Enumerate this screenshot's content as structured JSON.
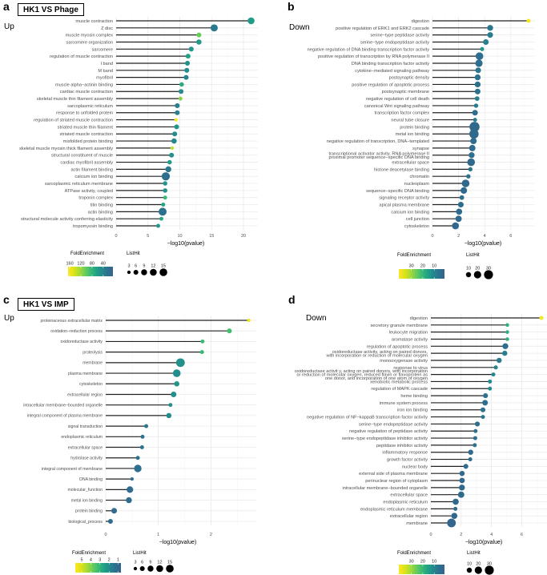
{
  "chart_data": [
    {
      "type": "lollipop",
      "letter": "a",
      "comparison": "HK1 VS Phage",
      "direction": "Up",
      "xlabel": "−log10(pvalue)",
      "xticks": [
        "0",
        "5",
        "10",
        "15",
        "20"
      ],
      "xlim": [
        0,
        22
      ],
      "legend_color_title": "FoldEnrichment",
      "legend_color_ticks": [
        "160",
        "120",
        "80",
        "40"
      ],
      "color_range": [
        5,
        166
      ],
      "legend_size_title": "ListHit",
      "legend_size_ticks": [
        "3",
        "6",
        "9",
        "12",
        "15"
      ],
      "size_max": 15,
      "terms": [
        "muscle contraction",
        "Z disc",
        "muscle myosin complex",
        "sarcomere organization",
        "sarcomere",
        "regulation of muscle contraction",
        "I band",
        "M band",
        "myofibril",
        "muscle alpha−actinin binding",
        "cardiac muscle contraction",
        "skeletal muscle thin filament assembly",
        "sarcoplasmic reticulum",
        "response to unfolded protein",
        "regulation of striated muscle contraction",
        "striated muscle thin filament",
        "striated muscle contraction",
        "misfolded protein binding",
        "skeletal muscle myosin thick filament assembly",
        "structural constituent of muscle",
        "cardiac myofibril assembly",
        "actin filament binding",
        "calcium ion binding",
        "sarcoplasmic reticulum membrane",
        "ATPase activity, coupled",
        "troponin complex",
        "titin binding",
        "actin binding",
        "structural molecule activity conferring elasticity",
        "tropomyosin binding"
      ],
      "x": [
        21.2,
        15.4,
        13.0,
        13.0,
        11.8,
        11.3,
        11.2,
        11.1,
        11.0,
        10.3,
        10.2,
        10.1,
        9.6,
        9.6,
        9.4,
        9.5,
        9.2,
        9.1,
        8.8,
        8.7,
        8.4,
        8.2,
        7.8,
        7.7,
        7.7,
        7.7,
        7.4,
        7.3,
        7.1,
        6.6
      ],
      "listhit": [
        12,
        13,
        6,
        7,
        6,
        6,
        6,
        6,
        6,
        5,
        6,
        4,
        6,
        6,
        3,
        6,
        6,
        7,
        3,
        6,
        5,
        9,
        17,
        5,
        5,
        4,
        4,
        16,
        4,
        4
      ],
      "fold_enrichment": [
        60,
        32,
        105,
        58,
        55,
        62,
        52,
        48,
        40,
        72,
        45,
        115,
        36,
        36,
        165,
        55,
        48,
        42,
        135,
        52,
        62,
        32,
        22,
        55,
        52,
        85,
        68,
        24,
        68,
        58
      ]
    },
    {
      "type": "lollipop",
      "letter": "b",
      "comparison": "",
      "direction": "Down",
      "xlabel": "−log10(pvalue)",
      "xticks": [
        "0",
        "2",
        "4",
        "6"
      ],
      "xlim": [
        0,
        7.8
      ],
      "legend_color_title": "FoldEnrichment",
      "legend_color_ticks": [
        "30",
        "20",
        "10"
      ],
      "color_range": [
        1,
        41
      ],
      "legend_size_title": "ListHit",
      "legend_size_ticks": [
        "10",
        "20",
        "30"
      ],
      "size_max": 30,
      "terms": [
        "digestion",
        "positive regulation of ERK1 and ERK2 cascade",
        "serine−type peptidase activity",
        "serine−type endopeptidase activity",
        "negative regulation of DNA binding transcription factor activity",
        "positive regulation of transcription by RNA polymerase II",
        "DNA binding transcription factor activity",
        "cytokine−mediated signaling pathway",
        "postsynaptic density",
        "positive regulation of apoptotic process",
        "postsynaptic membrane",
        "negative regulation of cell death",
        "canonical Wnt signaling pathway",
        "transcription factor complex",
        "neural tube closure",
        "protein binding",
        "metal ion binding",
        "negative regulation of transcription, DNA−templated",
        "synapse",
        "transcriptional activator activity, RNA polymerase II\nproximal promoter sequence−specific DNA binding",
        "extracellular space",
        "histone deacetylase binding",
        "chromatin",
        "nucleoplasm",
        "sequence−specific DNA binding",
        "signaling receptor activity",
        "apical plasma membrane",
        "calcium ion binding",
        "cell junction",
        "cytoskeleton"
      ],
      "x": [
        7.36,
        4.42,
        4.42,
        4.09,
        3.8,
        3.6,
        3.56,
        3.5,
        3.46,
        3.46,
        3.46,
        3.42,
        3.34,
        3.26,
        3.26,
        3.22,
        3.18,
        3.14,
        3.05,
        3.0,
        2.96,
        2.9,
        2.75,
        2.54,
        2.4,
        2.25,
        2.17,
        2.04,
        2.0,
        1.76
      ],
      "listhit": [
        6,
        13,
        12,
        12,
        6,
        22,
        20,
        12,
        13,
        13,
        12,
        8,
        7,
        12,
        6,
        38,
        32,
        15,
        15,
        13,
        22,
        7,
        7,
        22,
        16,
        8,
        12,
        14,
        15,
        18
      ],
      "fold_enrichment": [
        40,
        7,
        8,
        9,
        13,
        5,
        5,
        7,
        6,
        6,
        6,
        9,
        8,
        5,
        8,
        3,
        3,
        4,
        4,
        5,
        3,
        7,
        6,
        3,
        4,
        5,
        4,
        4,
        4,
        3
      ]
    },
    {
      "type": "lollipop",
      "letter": "c",
      "comparison": "HK1 VS IMP",
      "direction": "Up",
      "xlabel": "−log10(pvalue)",
      "xticks": [
        "0",
        "1",
        "2"
      ],
      "xlim": [
        0,
        2.85
      ],
      "legend_color_title": "FoldEnrichment",
      "legend_color_ticks": [
        "5",
        "4",
        "3",
        "2",
        "1"
      ],
      "color_range": [
        0.7,
        5.7
      ],
      "legend_size_title": "ListHit",
      "legend_size_ticks": [
        "3",
        "6",
        "9",
        "12",
        "15"
      ],
      "size_max": 15,
      "terms": [
        "proteinaceous extracellular matrix",
        "oxidation−reduction process",
        "oxidoreductase activity",
        "proteolysis",
        "membrane",
        "plasma membrane",
        "cytoskeleton",
        "extracellular region",
        "intracellular membrane−bounded organelle",
        "integral component of plasma membrane",
        "signal transduction",
        "endoplasmic reticulum",
        "extracellular space",
        "hydrolase activity",
        "integral component of membrane",
        "DNA binding",
        "molecular_function",
        "metal ion binding",
        "protein binding",
        "biological_process"
      ],
      "x": [
        2.72,
        2.35,
        1.84,
        1.83,
        1.42,
        1.35,
        1.35,
        1.29,
        1.23,
        1.2,
        0.77,
        0.7,
        0.69,
        0.61,
        0.61,
        0.5,
        0.46,
        0.44,
        0.16,
        0.09
      ],
      "listhit": [
        3,
        6,
        4,
        4,
        19,
        15,
        7,
        8,
        4,
        7,
        4,
        4,
        4,
        4,
        14,
        3,
        11,
        9,
        8,
        6
      ],
      "fold_enrichment": [
        5.5,
        3.3,
        3.2,
        3.1,
        2.1,
        2.0,
        2.2,
        2.1,
        2.1,
        2.0,
        1.5,
        1.4,
        1.4,
        1.3,
        1.2,
        1.3,
        1.1,
        1.1,
        1.1,
        1.1
      ]
    },
    {
      "type": "lollipop",
      "letter": "d",
      "comparison": "",
      "direction": "Down",
      "xlabel": "−log10(pvalue)",
      "xticks": [
        "0",
        "2",
        "4",
        "6"
      ],
      "xlim": [
        0,
        7.7
      ],
      "legend_color_title": "FoldEnrichment",
      "legend_color_ticks": [
        "30",
        "20",
        "10"
      ],
      "color_range": [
        1,
        41
      ],
      "legend_size_title": "ListHit",
      "legend_size_ticks": [
        "10",
        "20",
        "30"
      ],
      "size_max": 30,
      "terms": [
        "digestion",
        "secretory granule membrane",
        "leukocyte migration",
        "aromatase activity",
        "regulation of apoptotic process",
        "oxidoreductase activity, acting on paired donors,\nwith incorporation or reduction of molecular oxygen",
        "monooxygenase activity",
        "response to virus",
        "oxidoreductase activit y, acting on paired donors, with incorporation\nor reduction of molecular oxygen, reduced flavin or flavoprotein as\none donor, and incorporation of one atom of oxygen",
        "xenobiotic metabolic process",
        "regulation of MAPK cascade",
        "heme binding",
        "immune system process",
        "iron ion binding",
        "negative regulation of NF−kappaB transcription factor activity",
        "serine−type endopeptidase activity",
        "negative regulation of peptidase activity",
        "serine−type endopeptidase inhibitor activity",
        "peptidase inhibitor activity",
        "inflammatory response",
        "growth factor activity",
        "nuclear body",
        "external side of plasma membrane",
        "perinuclear region of cytoplasm",
        "intracellular membrane−bounded organelle",
        "extracellular space",
        "endoplasmic reticulum",
        "endoplasmic reticulum membrane",
        "extracellular region",
        "membrane"
      ],
      "x": [
        7.3,
        5.05,
        5.05,
        5.05,
        4.92,
        4.88,
        4.51,
        4.29,
        4.13,
        3.9,
        3.9,
        3.61,
        3.58,
        3.44,
        3.44,
        3.07,
        2.95,
        2.93,
        2.9,
        2.63,
        2.6,
        2.31,
        2.06,
        2.06,
        2.05,
        2.0,
        1.64,
        1.62,
        1.55,
        1.36
      ],
      "listhit": [
        6,
        5,
        5,
        5,
        13,
        10,
        10,
        6,
        6,
        6,
        6,
        9,
        12,
        9,
        6,
        9,
        6,
        6,
        6,
        10,
        6,
        9,
        10,
        11,
        13,
        15,
        14,
        6,
        14,
        28
      ],
      "fold_enrichment": [
        40,
        19,
        19,
        19,
        5,
        9,
        8,
        10,
        11,
        11,
        11,
        6,
        5,
        6,
        7,
        5,
        6,
        6,
        6,
        4,
        5,
        4,
        3,
        3,
        3,
        3,
        3,
        4,
        3,
        2
      ]
    }
  ]
}
